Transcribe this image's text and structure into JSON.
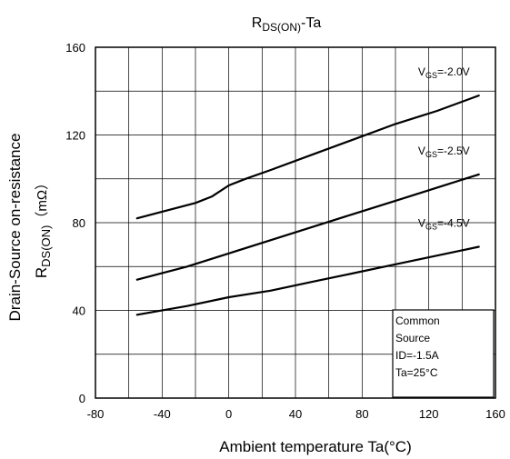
{
  "chart_data": {
    "type": "line",
    "title": {
      "main": "R",
      "sub": "DS(ON)",
      "suffix": "-Ta"
    },
    "xlabel": "Ambient temperature Ta(°C)",
    "ylabel": {
      "line1": "Drain-Source on-resistance",
      "line2_main": "R",
      "line2_sub": "DS(ON)",
      "line2_unit": "（mΩ）"
    },
    "xlim": [
      -80,
      160
    ],
    "ylim": [
      0,
      160
    ],
    "x_ticks": [
      -80,
      -40,
      0,
      40,
      80,
      120,
      160
    ],
    "y_ticks": [
      0,
      40,
      80,
      120,
      160
    ],
    "grid": true,
    "series": [
      {
        "name": {
          "main": "V",
          "sub": "GS",
          "value": "=-2.0V"
        },
        "x": [
          -55,
          -40,
          -20,
          -10,
          0,
          10,
          25,
          50,
          75,
          100,
          125,
          150
        ],
        "y": [
          82,
          85,
          89,
          92,
          97,
          100,
          104,
          111,
          118,
          125,
          131,
          138
        ]
      },
      {
        "name": {
          "main": "V",
          "sub": "GS",
          "value": "=-2.5V"
        },
        "x": [
          -55,
          -25,
          0,
          25,
          50,
          75,
          100,
          125,
          150
        ],
        "y": [
          54,
          60,
          66,
          72,
          78,
          84,
          90,
          96,
          102
        ]
      },
      {
        "name": {
          "main": "V",
          "sub": "GS",
          "value": "=-4.5V"
        },
        "x": [
          -55,
          -25,
          0,
          25,
          50,
          75,
          100,
          125,
          150
        ],
        "y": [
          38,
          42,
          46,
          49,
          53,
          57,
          61,
          65,
          69
        ]
      }
    ],
    "annotation": [
      "Common",
      "Source",
      "ID=-1.5A",
      "Ta=25°C"
    ]
  }
}
